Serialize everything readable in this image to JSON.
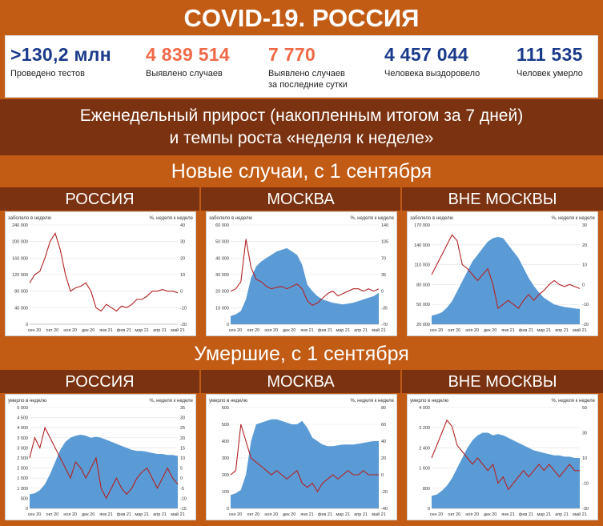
{
  "header": {
    "title": "COVID-19. РОССИЯ"
  },
  "stats": [
    {
      "value": ">130,2 млн",
      "label": "Проведено тестов",
      "color": "#1a3a8a"
    },
    {
      "value": "4 839 514",
      "label": "Выявлено случаев",
      "color": "#f06a47"
    },
    {
      "value": "7 770",
      "label": "Выявлено случаев",
      "label2": "за последние сутки",
      "color": "#f06a47"
    },
    {
      "value": "4 457 044",
      "label": "Человека выздоровело",
      "color": "#1a3a8a"
    },
    {
      "value": "111 535",
      "label": "Человек умерло",
      "color": "#1a3a8a"
    }
  ],
  "weekly": {
    "line1": "Еженедельный прирост (накопленным итогом за 7 дней)",
    "line2": "и темпы роста «неделя к неделе»"
  },
  "sections": {
    "cases": "Новые случаи, с 1 сентября",
    "deaths": "Умершие, с 1 сентября"
  },
  "regions": [
    "РОССИЯ",
    "МОСКВА",
    "ВНЕ МОСКВЫ"
  ],
  "colors": {
    "area": "#5b9bd5",
    "line": "#b22222"
  },
  "chart_data": [
    {
      "id": "cases-russia",
      "type": "area",
      "ylabel": "заболело в неделю",
      "y2label": "%, неделя к неделе",
      "months": [
        "сен 20",
        "окт 20",
        "ноя 20",
        "дек 20",
        "янв 21",
        "фев 21",
        "мар 21",
        "апр 21",
        "май 21"
      ],
      "ylim": [
        0,
        240000
      ],
      "yticks": [
        "0",
        "40 000",
        "80 000",
        "120 000",
        "160 000",
        "200 000",
        "240 000"
      ],
      "y2lim": [
        -20,
        40
      ],
      "y2ticks": [
        "-20",
        "-10",
        "0",
        "10",
        "20",
        "30",
        "40"
      ],
      "area": [
        38,
        40,
        45,
        55,
        75,
        100,
        120,
        140,
        155,
        165,
        175,
        180,
        190,
        195,
        198,
        190,
        175,
        160,
        145,
        130,
        115,
        100,
        90,
        80,
        70,
        65,
        63,
        62,
        62,
        62
      ],
      "line": [
        5,
        10,
        12,
        20,
        30,
        35,
        25,
        10,
        0,
        2,
        3,
        5,
        0,
        -10,
        -12,
        -8,
        -10,
        -12,
        -9,
        -10,
        -8,
        -5,
        -5,
        -3,
        0,
        0,
        1,
        0,
        0,
        -1
      ]
    },
    {
      "id": "cases-moscow",
      "type": "area",
      "ylabel": "заболело в неделю",
      "y2label": "%, неделя к неделе",
      "months": [
        "сен 20",
        "окт 20",
        "ноя 20",
        "дек 20",
        "янв 21",
        "фев 21",
        "мар 21",
        "апр 21",
        "май 21"
      ],
      "ylim": [
        0,
        60000
      ],
      "yticks": [
        "0",
        "10 000",
        "20 000",
        "30 000",
        "40 000",
        "50 000",
        "60 000"
      ],
      "y2lim": [
        -70,
        140
      ],
      "y2ticks": [
        "-70",
        "-35",
        "0",
        "35",
        "70",
        "105",
        "140"
      ],
      "area": [
        5000,
        6000,
        8000,
        15000,
        28000,
        35000,
        38000,
        40000,
        42000,
        44000,
        45000,
        46000,
        44000,
        42000,
        36000,
        24000,
        20000,
        17000,
        15000,
        14000,
        13000,
        12500,
        12000,
        12500,
        13000,
        14000,
        15000,
        16000,
        17000,
        19000
      ],
      "line": [
        0,
        5,
        20,
        110,
        50,
        25,
        20,
        10,
        5,
        8,
        10,
        5,
        10,
        15,
        5,
        -20,
        -30,
        -25,
        -15,
        -5,
        0,
        -10,
        -5,
        0,
        5,
        5,
        0,
        5,
        0,
        5
      ]
    },
    {
      "id": "cases-outside",
      "type": "area",
      "ylabel": "заболело в неделю",
      "y2label": "%, неделя к неделе",
      "months": [
        "сен 20",
        "окт 20",
        "ноя 20",
        "дек 20",
        "янв 21",
        "фев 21",
        "мар 21",
        "апр 21",
        "май 21"
      ],
      "ylim": [
        20000,
        170000
      ],
      "yticks": [
        "20 000",
        "50 000",
        "80 000",
        "110 000",
        "140 000",
        "170 000"
      ],
      "y2lim": [
        -20,
        30
      ],
      "y2ticks": [
        "-20",
        "-10",
        "0",
        "10",
        "20",
        "30"
      ],
      "area": [
        33000,
        35000,
        38000,
        45000,
        55000,
        70000,
        85000,
        100000,
        115000,
        125000,
        135000,
        145000,
        150000,
        152000,
        150000,
        140000,
        130000,
        120000,
        105000,
        90000,
        78000,
        68000,
        60000,
        55000,
        50000,
        48000,
        46000,
        45000,
        44000,
        43000
      ],
      "line": [
        5,
        10,
        15,
        20,
        25,
        22,
        10,
        8,
        5,
        2,
        5,
        8,
        0,
        -12,
        -10,
        -8,
        -10,
        -12,
        -8,
        -5,
        -8,
        -5,
        -3,
        0,
        2,
        0,
        -1,
        0,
        -1,
        -2
      ]
    },
    {
      "id": "deaths-russia",
      "type": "area",
      "ylabel": "умерло в неделю",
      "y2label": "%, неделя к неделе",
      "months": [
        "сен 20",
        "окт 20",
        "ноя 20",
        "дек 20",
        "янв 21",
        "фев 21",
        "мар 21",
        "апр 21",
        "май 21"
      ],
      "ylim": [
        0,
        5000
      ],
      "yticks": [
        "0",
        "500",
        "1 000",
        "1 500",
        "2 000",
        "2 500",
        "3 000",
        "3 500",
        "4 000",
        "4 500",
        "5 000"
      ],
      "y2lim": [
        -15,
        35
      ],
      "y2ticks": [
        "-15",
        "-10",
        "-5",
        "0",
        "5",
        "10",
        "15",
        "20",
        "25",
        "30",
        "35"
      ],
      "area": [
        700,
        750,
        900,
        1200,
        1700,
        2300,
        2900,
        3300,
        3500,
        3600,
        3650,
        3600,
        3500,
        3550,
        3500,
        3400,
        3300,
        3200,
        3100,
        3000,
        2900,
        2850,
        2850,
        2800,
        2750,
        2700,
        2700,
        2650,
        2650,
        2600
      ],
      "line": [
        10,
        20,
        15,
        25,
        20,
        15,
        10,
        5,
        0,
        8,
        5,
        0,
        5,
        10,
        -5,
        -10,
        -5,
        0,
        -5,
        -8,
        -5,
        0,
        3,
        5,
        0,
        -5,
        0,
        5,
        0,
        -3
      ]
    },
    {
      "id": "deaths-moscow",
      "type": "area",
      "ylabel": "умерло в неделю",
      "y2label": "%, неделя к неделе",
      "months": [
        "сен 20",
        "окт 20",
        "ноя 20",
        "дек 20",
        "янв 21",
        "фев 21",
        "мар 21",
        "апр 21",
        "май 21"
      ],
      "ylim": [
        0,
        600
      ],
      "yticks": [
        "0",
        "100",
        "200",
        "300",
        "400",
        "500",
        "600"
      ],
      "y2lim": [
        -40,
        80
      ],
      "y2ticks": [
        "-40",
        "-20",
        "0",
        "20",
        "40",
        "60",
        "80"
      ],
      "area": [
        80,
        90,
        110,
        200,
        400,
        500,
        510,
        520,
        530,
        530,
        520,
        510,
        500,
        500,
        520,
        480,
        420,
        400,
        380,
        370,
        370,
        375,
        380,
        380,
        380,
        385,
        390,
        395,
        400,
        400
      ],
      "line": [
        0,
        5,
        60,
        40,
        20,
        15,
        10,
        5,
        0,
        5,
        0,
        -5,
        0,
        5,
        -10,
        -15,
        -10,
        -20,
        -10,
        -5,
        0,
        -5,
        0,
        5,
        0,
        0,
        5,
        0,
        0,
        0
      ]
    },
    {
      "id": "deaths-outside",
      "type": "area",
      "ylabel": "умерло в неделю",
      "y2label": "%, неделя к неделе",
      "months": [
        "сен 20",
        "окт 20",
        "ноя 20",
        "дек 20",
        "янв 21",
        "фев 21",
        "мар 21",
        "апр 21",
        "май 21"
      ],
      "ylim": [
        0,
        4000
      ],
      "yticks": [
        "0",
        "800",
        "1 600",
        "2 400",
        "3 200",
        "4 000"
      ],
      "y2lim": [
        -30,
        50
      ],
      "y2ticks": [
        "-30",
        "-10",
        "10",
        "30",
        "50"
      ],
      "area": [
        500,
        550,
        700,
        900,
        1200,
        1600,
        2000,
        2400,
        2700,
        2900,
        3000,
        3000,
        2900,
        2950,
        2900,
        2800,
        2700,
        2600,
        2500,
        2400,
        2300,
        2250,
        2200,
        2150,
        2100,
        2100,
        2050,
        2050,
        2000,
        2000
      ],
      "line": [
        10,
        20,
        30,
        40,
        35,
        20,
        15,
        10,
        5,
        10,
        5,
        0,
        5,
        -10,
        -5,
        -15,
        -10,
        -5,
        0,
        -5,
        0,
        5,
        0,
        5,
        0,
        -5,
        0,
        5,
        0,
        0
      ]
    }
  ]
}
